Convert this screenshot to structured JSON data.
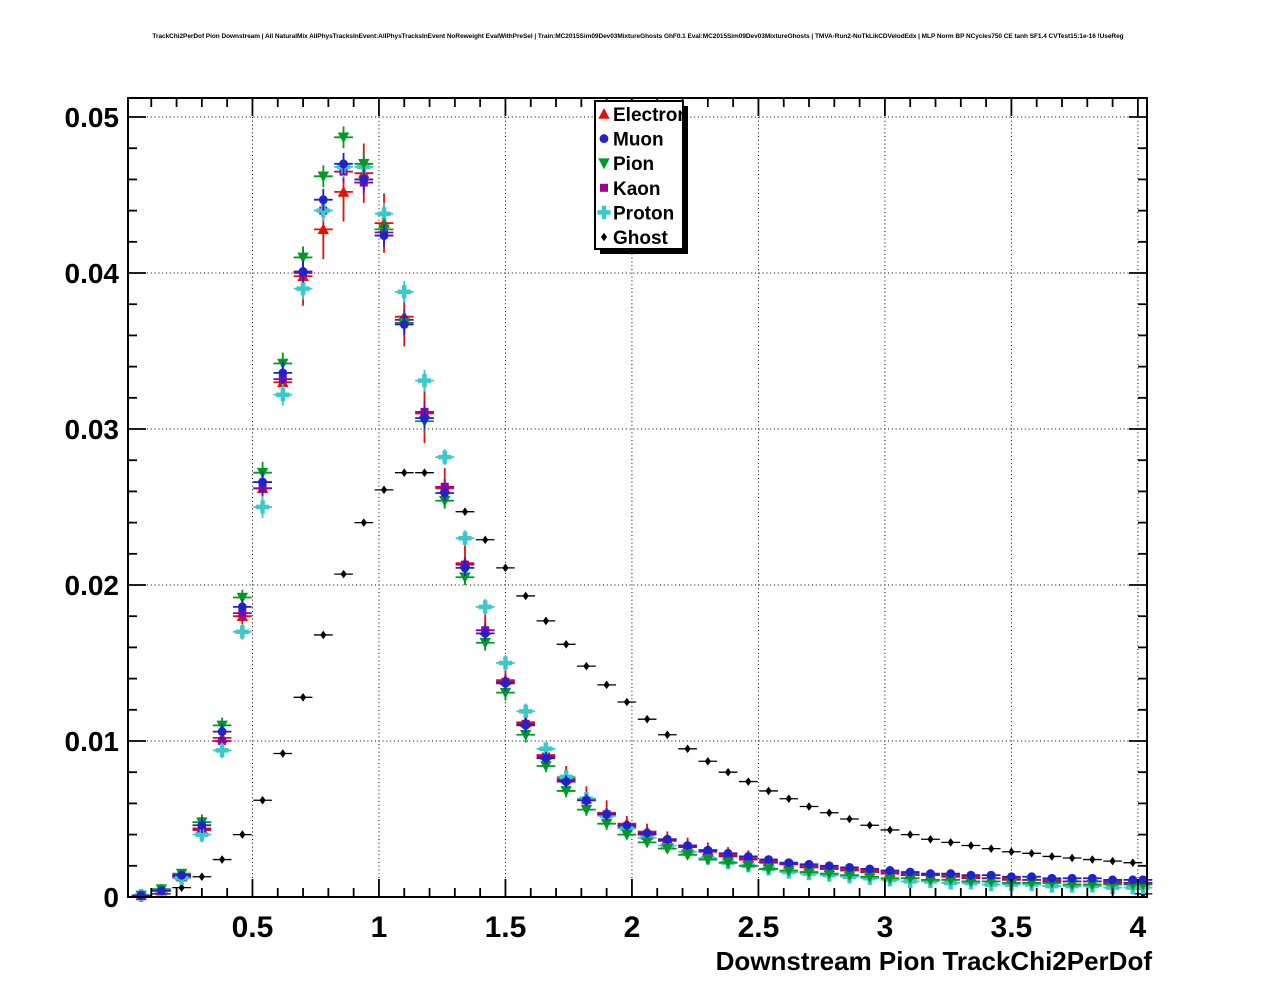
{
  "chart_data": {
    "type": "scatter",
    "title": "TrackChi2PerDof Pion Downstream | All NaturalMix AllPhysTracksInEvent:AllPhysTracksInEvent NoReweight EvalWithPreSel | Train:MC2015Sim09Dev03MixtureGhosts GhF0.1 Eval:MC2015Sim09Dev03MixtureGhosts | TMVA-Run2-NoTkLikCDVelodEdx | MLP Norm BP NCycles750 CE tanh SF1.4 CVTest15:1e-16 !UseReg",
    "xlabel": "Downstream Pion TrackChi2PerDof",
    "ylabel": "",
    "xlim": [
      0.008,
      4.036
    ],
    "ylim": [
      0,
      0.05122
    ],
    "grid": true,
    "legend_position": "top-center",
    "xticks": {
      "values": [
        0.5,
        1,
        1.5,
        2,
        2.5,
        3,
        3.5,
        4
      ],
      "labels": [
        "0.5",
        "1",
        "1.5",
        "2",
        "2.5",
        "3",
        "3.5",
        "4"
      ],
      "minor_step": 0.1
    },
    "yticks": {
      "values": [
        0,
        0.01,
        0.02,
        0.03,
        0.04,
        0.05
      ],
      "labels": [
        "0",
        "0.01",
        "0.02",
        "0.03",
        "0.04",
        "0.05"
      ],
      "minor_step": 0.002
    },
    "x": [
      0.06,
      0.14,
      0.22,
      0.3,
      0.38,
      0.46,
      0.54,
      0.62,
      0.7,
      0.78,
      0.86,
      0.94,
      1.02,
      1.1,
      1.18,
      1.26,
      1.34,
      1.42,
      1.5,
      1.58,
      1.66,
      1.74,
      1.82,
      1.9,
      1.98,
      2.06,
      2.14,
      2.22,
      2.3,
      2.38,
      2.46,
      2.54,
      2.62,
      2.7,
      2.78,
      2.86,
      2.94,
      3.02,
      3.1,
      3.18,
      3.26,
      3.34,
      3.42,
      3.5,
      3.58,
      3.66,
      3.74,
      3.82,
      3.9,
      3.98,
      4.02
    ],
    "ey_profiles": {
      "colored": [
        0.0002,
        0.0002,
        0.0002,
        0.0005,
        0.0005,
        0.0005,
        0.0007,
        0.0007,
        0.0007,
        0.0007,
        0.0007,
        0.0007,
        0.0007,
        0.0007,
        0.0007,
        0.0005,
        0.0005,
        0.0005,
        0.0005,
        0.0005,
        0.0004,
        0.0004,
        0.0004,
        0.0004,
        0.0003,
        0.0003,
        0.0003,
        0.0003,
        0.0002,
        0.0002,
        0.0002,
        0.0002,
        0.0002,
        0.0002,
        0.0002,
        0.0002,
        0.0002,
        0.0002,
        0.0002,
        0.0002,
        0.0002,
        0.0002,
        0.0002,
        0.0002,
        0.0002,
        0.0002,
        0.0002,
        0.0002,
        0.0002,
        0.0002,
        0.0002
      ],
      "electron": [
        0.0002,
        0.0003,
        0.0003,
        0.0008,
        0.0008,
        0.0008,
        0.0012,
        0.0012,
        0.0019,
        0.0019,
        0.0019,
        0.0019,
        0.0019,
        0.0019,
        0.0019,
        0.0013,
        0.0013,
        0.0013,
        0.0013,
        0.0008,
        0.0008,
        0.0008,
        0.0008,
        0.0008,
        0.0005,
        0.0005,
        0.0005,
        0.0005,
        0.0005,
        0.0005,
        0.0005,
        0.0003,
        0.0003,
        0.0003,
        0.0003,
        0.0003,
        0.0003,
        0.0003,
        0.0003,
        0.0003,
        0.0003,
        0.0003,
        0.0003,
        0.0003,
        0.0003,
        0.0003,
        0.0003,
        0.0003,
        0.0003,
        0.0003,
        0.0003
      ],
      "ghost": [
        0.0001,
        0.0001,
        0.0001,
        0.0001,
        0.0001,
        0.0001,
        0.0001,
        0.0001,
        0.0001,
        0.0001,
        0.0001,
        0.0001,
        0.0001,
        0.0001,
        0.0001,
        0.0001,
        0.0001,
        0.0001,
        0.0001,
        0.0001,
        0.0001,
        0.0001,
        0.0001,
        0.0001,
        0.0001,
        0.0001,
        0.0001,
        0.0001,
        0.0001,
        0.0001,
        0.0001,
        0.0001,
        0.0001,
        0.0001,
        0.0001,
        0.0001,
        0.0001,
        0.0001,
        0.0001,
        0.0001,
        0.0001,
        0.0001,
        0.0001,
        0.0001,
        0.0001,
        0.0001,
        0.0001,
        0.0001,
        0.0001,
        0.0001,
        0.0001
      ]
    },
    "series": [
      {
        "name": "Electron",
        "color": "#e31209",
        "marker": "triangle-up",
        "ey": "electron",
        "y": [
          0.0001,
          0.0004,
          0.0013,
          0.0044,
          0.0102,
          0.018,
          0.0262,
          0.033,
          0.0398,
          0.0428,
          0.0452,
          0.0464,
          0.0432,
          0.0372,
          0.031,
          0.0262,
          0.0214,
          0.0171,
          0.0139,
          0.0112,
          0.0091,
          0.0076,
          0.0063,
          0.0054,
          0.0047,
          0.0042,
          0.0037,
          0.0033,
          0.003,
          0.0027,
          0.0025,
          0.0023,
          0.0021,
          0.002,
          0.0019,
          0.0018,
          0.0017,
          0.0016,
          0.0015,
          0.0014,
          0.0014,
          0.0013,
          0.0012,
          0.0012,
          0.0011,
          0.0011,
          0.001,
          0.001,
          0.001,
          0.0009,
          0.0009
        ]
      },
      {
        "name": "Muon",
        "color": "#2222cc",
        "marker": "circle",
        "ey": "colored",
        "y": [
          0.0001,
          0.0004,
          0.0014,
          0.0046,
          0.0106,
          0.0186,
          0.0266,
          0.0336,
          0.0401,
          0.0447,
          0.047,
          0.046,
          0.0424,
          0.0367,
          0.0307,
          0.0259,
          0.0211,
          0.0169,
          0.0137,
          0.011,
          0.0089,
          0.0074,
          0.0062,
          0.0053,
          0.0046,
          0.0041,
          0.0037,
          0.0033,
          0.003,
          0.0028,
          0.0026,
          0.0024,
          0.0022,
          0.0021,
          0.002,
          0.0019,
          0.0018,
          0.0017,
          0.0016,
          0.0015,
          0.0015,
          0.0014,
          0.0014,
          0.0013,
          0.0013,
          0.0012,
          0.0012,
          0.0012,
          0.0011,
          0.0011,
          0.0011
        ]
      },
      {
        "name": "Pion",
        "color": "#009926",
        "marker": "triangle-down",
        "ey": "colored",
        "y": [
          0.0001,
          0.0005,
          0.0015,
          0.0048,
          0.011,
          0.0192,
          0.0272,
          0.0342,
          0.041,
          0.0462,
          0.0487,
          0.047,
          0.0428,
          0.0368,
          0.0305,
          0.0254,
          0.0205,
          0.0163,
          0.0131,
          0.0104,
          0.0084,
          0.0068,
          0.0056,
          0.0047,
          0.004,
          0.0035,
          0.0031,
          0.0027,
          0.0024,
          0.0022,
          0.002,
          0.0018,
          0.0017,
          0.0016,
          0.0015,
          0.0014,
          0.0013,
          0.0012,
          0.0012,
          0.0011,
          0.0011,
          0.001,
          0.001,
          0.0009,
          0.0009,
          0.0009,
          0.0008,
          0.0008,
          0.0008,
          0.0008,
          0.0008
        ]
      },
      {
        "name": "Kaon",
        "color": "#990099",
        "marker": "square",
        "ey": "colored",
        "y": [
          0.0001,
          0.0004,
          0.0013,
          0.0043,
          0.01,
          0.0182,
          0.0262,
          0.0332,
          0.04,
          0.044,
          0.0465,
          0.0458,
          0.0426,
          0.037,
          0.0311,
          0.0263,
          0.0213,
          0.0171,
          0.0138,
          0.0111,
          0.009,
          0.0075,
          0.0062,
          0.0053,
          0.0045,
          0.004,
          0.0036,
          0.0032,
          0.0029,
          0.0026,
          0.0024,
          0.0022,
          0.0021,
          0.0019,
          0.0018,
          0.0017,
          0.0016,
          0.0015,
          0.0014,
          0.0014,
          0.0013,
          0.0012,
          0.0012,
          0.0011,
          0.0011,
          0.001,
          0.001,
          0.001,
          0.0009,
          0.0009,
          0.0009
        ]
      },
      {
        "name": "Proton",
        "color": "#3cc8c8",
        "marker": "cross",
        "ey": "colored",
        "y": [
          0.0001,
          0.0004,
          0.0012,
          0.004,
          0.0094,
          0.017,
          0.025,
          0.0322,
          0.039,
          0.044,
          0.0468,
          0.0468,
          0.0438,
          0.0388,
          0.0331,
          0.0282,
          0.023,
          0.0186,
          0.015,
          0.0119,
          0.0095,
          0.0077,
          0.0063,
          0.0052,
          0.0044,
          0.0038,
          0.0033,
          0.0029,
          0.0025,
          0.0022,
          0.002,
          0.0018,
          0.0016,
          0.0015,
          0.0014,
          0.0013,
          0.0012,
          0.0011,
          0.001,
          0.001,
          0.0009,
          0.0009,
          0.0008,
          0.0008,
          0.0008,
          0.0007,
          0.0007,
          0.0007,
          0.0006,
          0.0006,
          0.0006
        ]
      },
      {
        "name": "Ghost",
        "color": "#000000",
        "marker": "diamond",
        "ey": "ghost",
        "y": [
          0.0,
          0.0002,
          0.0006,
          0.0013,
          0.0024,
          0.004,
          0.0062,
          0.0092,
          0.0128,
          0.0168,
          0.0207,
          0.024,
          0.0261,
          0.0272,
          0.0272,
          0.0263,
          0.0247,
          0.0229,
          0.0211,
          0.0193,
          0.0177,
          0.0162,
          0.0148,
          0.0136,
          0.0125,
          0.0114,
          0.0104,
          0.0095,
          0.0087,
          0.008,
          0.0074,
          0.0068,
          0.0063,
          0.0058,
          0.0054,
          0.005,
          0.0046,
          0.0043,
          0.004,
          0.0037,
          0.0035,
          0.0033,
          0.0031,
          0.0029,
          0.0028,
          0.0026,
          0.0025,
          0.0024,
          0.0023,
          0.0022,
          0.0002
        ]
      }
    ]
  }
}
